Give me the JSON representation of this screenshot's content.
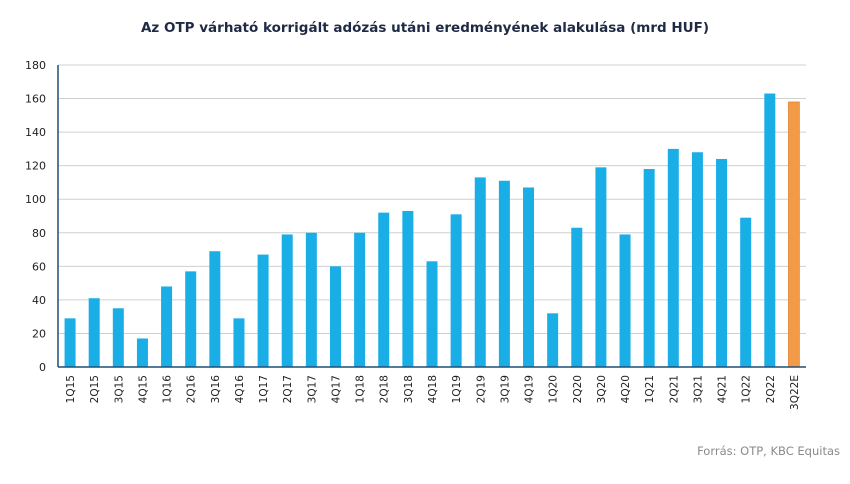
{
  "chart_data": {
    "type": "bar",
    "title": "Az OTP várható korrigált adózás utáni eredményének  alakulása (mrd HUF)",
    "categories": [
      "1Q15",
      "2Q15",
      "3Q15",
      "4Q15",
      "1Q16",
      "2Q16",
      "3Q16",
      "4Q16",
      "1Q17",
      "2Q17",
      "3Q17",
      "4Q17",
      "1Q18",
      "2Q18",
      "3Q18",
      "4Q18",
      "1Q19",
      "2Q19",
      "3Q19",
      "4Q19",
      "1Q20",
      "2Q20",
      "3Q20",
      "4Q20",
      "1Q21",
      "2Q21",
      "3Q21",
      "4Q21",
      "1Q22",
      "2Q22",
      "3Q22E"
    ],
    "values": [
      29,
      41,
      35,
      17,
      48,
      57,
      69,
      29,
      67,
      79,
      80,
      60,
      80,
      92,
      93,
      63,
      91,
      113,
      111,
      107,
      32,
      83,
      119,
      79,
      118,
      130,
      128,
      124,
      89,
      163,
      158
    ],
    "bar_colors": [
      "#1aaee6",
      "#1aaee6",
      "#1aaee6",
      "#1aaee6",
      "#1aaee6",
      "#1aaee6",
      "#1aaee6",
      "#1aaee6",
      "#1aaee6",
      "#1aaee6",
      "#1aaee6",
      "#1aaee6",
      "#1aaee6",
      "#1aaee6",
      "#1aaee6",
      "#1aaee6",
      "#1aaee6",
      "#1aaee6",
      "#1aaee6",
      "#1aaee6",
      "#1aaee6",
      "#1aaee6",
      "#1aaee6",
      "#1aaee6",
      "#1aaee6",
      "#1aaee6",
      "#1aaee6",
      "#1aaee6",
      "#1aaee6",
      "#1aaee6",
      "#f39a47"
    ],
    "xlabel": "",
    "ylabel": "",
    "ylim": [
      0,
      180
    ],
    "yticks": [
      "0",
      "20",
      "40",
      "60",
      "80",
      "100",
      "120",
      "140",
      "160",
      "180"
    ],
    "grid": true,
    "colors": {
      "actual": "#1aaee6",
      "estimate": "#f39a47",
      "grid": "#d0d0d0",
      "axis": "#1f4e79"
    }
  },
  "source_text": "Forrás: OTP, KBC Equitas"
}
